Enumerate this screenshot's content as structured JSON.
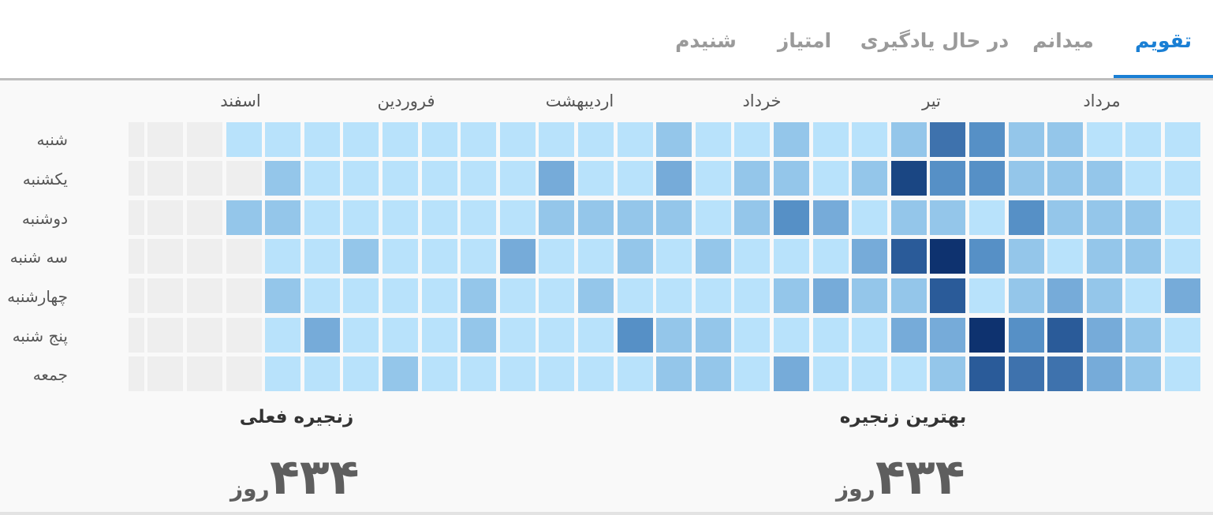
{
  "tabs": [
    {
      "label": "تقویم",
      "active": true
    },
    {
      "label": "میدانم",
      "active": false
    },
    {
      "label": "در حال یادگیری",
      "active": false
    },
    {
      "label": "امتیاز",
      "active": false
    },
    {
      "label": "شنیدم",
      "active": false
    }
  ],
  "calendar": {
    "months": [
      "مرداد",
      "تیر",
      "خرداد",
      "اردیبهشت",
      "فروردین",
      "اسفند"
    ],
    "days": [
      "شنبه",
      "یکشنبه",
      "دوشنبه",
      "سه شنبه",
      "چهارشنبه",
      "پنج شنبه",
      "جمعه"
    ],
    "colors": {
      "empty": "#eeeeee",
      "level0": "#b8e2fb",
      "level1": "#94c6ea",
      "level2": "#76abd9",
      "level3": "#5690c6",
      "level4": "#3e72ad",
      "level5": "#2a5b99",
      "level6": "#1a4683",
      "level7": "#0e326f"
    },
    "columns": [
      [
        0,
        0,
        0,
        0,
        2,
        0,
        0
      ],
      [
        0,
        0,
        1,
        1,
        0,
        1,
        1
      ],
      [
        0,
        1,
        1,
        1,
        1,
        2,
        2
      ],
      [
        1,
        1,
        1,
        0,
        2,
        5,
        4
      ],
      [
        1,
        1,
        3,
        1,
        1,
        3,
        4
      ],
      [
        3,
        3,
        0,
        3,
        0,
        7,
        5
      ],
      [
        4,
        3,
        1,
        7,
        5,
        2,
        1
      ],
      [
        1,
        6,
        1,
        5,
        1,
        2,
        0
      ],
      [
        0,
        1,
        0,
        2,
        1,
        0,
        0
      ],
      [
        0,
        0,
        2,
        0,
        2,
        0,
        0
      ],
      [
        1,
        1,
        3,
        0,
        1,
        0,
        2
      ],
      [
        0,
        1,
        1,
        0,
        0,
        0,
        0
      ],
      [
        0,
        0,
        0,
        1,
        0,
        1,
        1
      ],
      [
        1,
        2,
        1,
        0,
        0,
        1,
        1
      ],
      [
        0,
        0,
        1,
        1,
        0,
        3,
        0
      ],
      [
        0,
        0,
        1,
        0,
        1,
        0,
        0
      ],
      [
        0,
        2,
        1,
        0,
        0,
        0,
        0
      ],
      [
        0,
        0,
        0,
        2,
        0,
        0,
        0
      ],
      [
        0,
        0,
        0,
        0,
        1,
        1,
        0
      ],
      [
        0,
        0,
        0,
        0,
        0,
        0,
        0
      ],
      [
        0,
        0,
        0,
        0,
        0,
        0,
        1
      ],
      [
        0,
        0,
        0,
        1,
        0,
        0,
        0
      ],
      [
        0,
        0,
        0,
        0,
        0,
        2,
        0
      ],
      [
        0,
        1,
        1,
        0,
        1,
        0,
        0
      ],
      [
        0,
        -1,
        1,
        -1,
        -1,
        -1,
        -1
      ],
      [
        -1,
        -1,
        -1,
        -1,
        -1,
        -1,
        -1
      ],
      [
        -1,
        -1,
        -1,
        -1,
        -1,
        -1,
        -1
      ],
      [
        -1,
        -1,
        -1,
        -1,
        -1,
        -1,
        -1
      ]
    ]
  },
  "stats": {
    "current": {
      "label": "زنجیره فعلی",
      "value": "۴۳۴",
      "unit": "روز"
    },
    "best": {
      "label": "بهترین زنجیره",
      "value": "۴۳۴",
      "unit": "روز"
    }
  }
}
